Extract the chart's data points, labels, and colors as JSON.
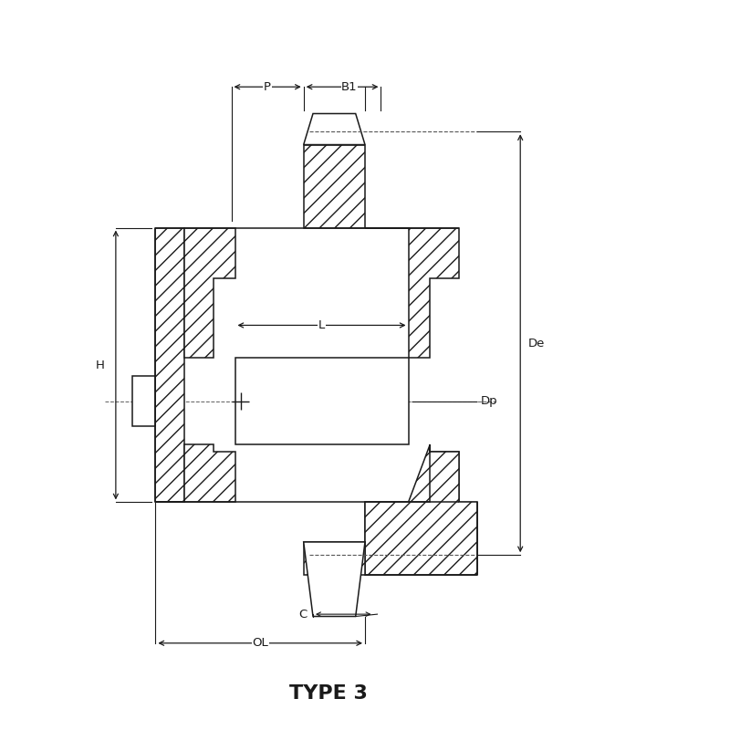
{
  "title": "TYPE 3",
  "title_fontsize": 16,
  "title_fontweight": "bold",
  "line_color": "#1a1a1a",
  "bg_color": "#ffffff",
  "figsize": [
    8,
    8
  ],
  "dpi": 100,
  "xlim": [
    0,
    10
  ],
  "ylim": [
    0,
    10
  ]
}
